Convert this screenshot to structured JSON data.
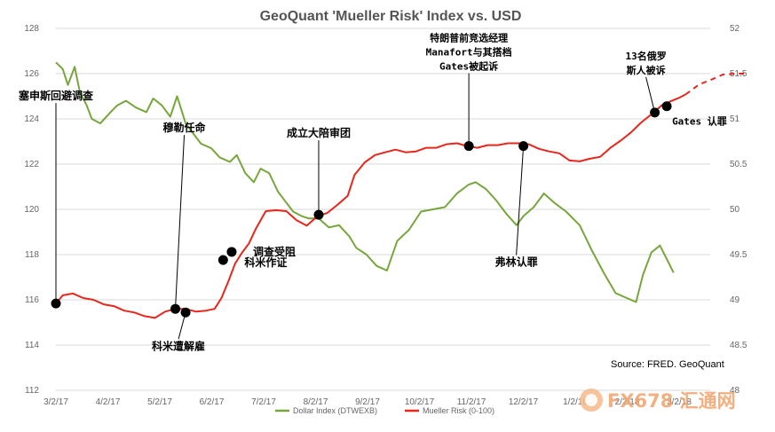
{
  "chart_data": {
    "type": "line",
    "title": "GeoQuant 'Mueller Risk' Index vs. USD",
    "source": "Source: FRED. GeoQuant",
    "x_ticks": [
      "3/2/17",
      "4/2/17",
      "5/2/17",
      "6/2/17",
      "7/2/17",
      "8/2/17",
      "9/2/17",
      "10/2/17",
      "11/2/17",
      "12/2/17",
      "1/2/18",
      "2/2/18",
      "3/2/18"
    ],
    "y_left_ticks": [
      "112",
      "114",
      "116",
      "118",
      "120",
      "122",
      "124",
      "126",
      "128"
    ],
    "y_right_ticks": [
      "48",
      "48.5",
      "49",
      "49.5",
      "50",
      "50.5",
      "51",
      "51.5",
      "52"
    ],
    "ylim_left": [
      112,
      128
    ],
    "ylim_right": [
      48,
      52
    ],
    "grid": true,
    "legend_position": "bottom",
    "series": [
      {
        "name": "Dollar Index (DTWEXB)",
        "axis": "left",
        "color": "#77a63c",
        "x": [
          "2017-03-02",
          "2017-03-06",
          "2017-03-09",
          "2017-03-13",
          "2017-03-16",
          "2017-03-20",
          "2017-03-23",
          "2017-03-28",
          "2017-04-03",
          "2017-04-07",
          "2017-04-12",
          "2017-04-18",
          "2017-04-24",
          "2017-04-28",
          "2017-05-03",
          "2017-05-08",
          "2017-05-12",
          "2017-05-17",
          "2017-05-22",
          "2017-05-26",
          "2017-06-01",
          "2017-06-06",
          "2017-06-12",
          "2017-06-16",
          "2017-06-21",
          "2017-06-26",
          "2017-06-30",
          "2017-07-05",
          "2017-07-10",
          "2017-07-14",
          "2017-07-19",
          "2017-07-24",
          "2017-07-28",
          "2017-08-03",
          "2017-08-09",
          "2017-08-15",
          "2017-08-21",
          "2017-08-25",
          "2017-08-31",
          "2017-09-06",
          "2017-09-12",
          "2017-09-18",
          "2017-09-25",
          "2017-10-02",
          "2017-10-09",
          "2017-10-16",
          "2017-10-23",
          "2017-10-30",
          "2017-11-03",
          "2017-11-09",
          "2017-11-15",
          "2017-11-21",
          "2017-11-27",
          "2017-12-01",
          "2017-12-07",
          "2017-12-13",
          "2017-12-19",
          "2017-12-26",
          "2018-01-03",
          "2018-01-10",
          "2018-01-17",
          "2018-01-24",
          "2018-01-30",
          "2018-02-05",
          "2018-02-09",
          "2018-02-14",
          "2018-02-19",
          "2018-02-23",
          "2018-02-27"
        ],
        "values": [
          126.5,
          126.2,
          125.5,
          126.3,
          125.2,
          124.6,
          124.0,
          123.8,
          124.3,
          124.6,
          124.8,
          124.5,
          124.3,
          124.9,
          124.6,
          124.1,
          125.0,
          123.8,
          123.3,
          122.9,
          122.7,
          122.3,
          122.1,
          122.4,
          121.6,
          121.2,
          121.8,
          121.6,
          120.8,
          120.4,
          119.9,
          119.7,
          119.6,
          119.6,
          119.2,
          119.3,
          118.8,
          118.3,
          118.0,
          117.5,
          117.3,
          118.6,
          119.1,
          119.9,
          120.0,
          120.1,
          120.7,
          121.1,
          121.2,
          120.9,
          120.4,
          119.8,
          119.3,
          119.7,
          120.1,
          120.7,
          120.3,
          119.9,
          119.3,
          118.2,
          117.2,
          116.3,
          116.1,
          115.9,
          117.1,
          118.1,
          118.4,
          117.8,
          117.2
        ]
      },
      {
        "name": "Mueller Risk (0-100)",
        "axis": "right",
        "color": "#e8261c",
        "x": [
          "2017-03-02",
          "2017-03-06",
          "2017-03-12",
          "2017-03-18",
          "2017-03-24",
          "2017-03-30",
          "2017-04-05",
          "2017-04-11",
          "2017-04-17",
          "2017-04-23",
          "2017-04-29",
          "2017-05-05",
          "2017-05-11",
          "2017-05-17",
          "2017-05-23",
          "2017-05-29",
          "2017-06-03",
          "2017-06-07",
          "2017-06-11",
          "2017-06-15",
          "2017-06-19",
          "2017-06-23",
          "2017-06-27",
          "2017-07-03",
          "2017-07-09",
          "2017-07-15",
          "2017-07-21",
          "2017-07-27",
          "2017-08-02",
          "2017-08-08",
          "2017-08-14",
          "2017-08-20",
          "2017-08-24",
          "2017-08-30",
          "2017-09-05",
          "2017-09-11",
          "2017-09-17",
          "2017-09-23",
          "2017-09-29",
          "2017-10-05",
          "2017-10-11",
          "2017-10-17",
          "2017-10-23",
          "2017-10-29",
          "2017-11-04",
          "2017-11-10",
          "2017-11-16",
          "2017-11-22",
          "2017-11-28",
          "2017-12-04",
          "2017-12-10",
          "2017-12-16",
          "2017-12-22",
          "2017-12-28",
          "2018-01-03",
          "2018-01-09",
          "2018-01-15",
          "2018-01-21",
          "2018-01-27",
          "2018-02-02",
          "2018-02-08",
          "2018-02-14",
          "2018-02-20",
          "2018-02-26",
          "2018-03-02",
          "2018-03-06"
        ],
        "values": [
          48.96,
          49.05,
          49.07,
          49.02,
          49.0,
          48.95,
          48.93,
          48.88,
          48.86,
          48.82,
          48.8,
          48.87,
          48.9,
          48.9,
          48.87,
          48.88,
          48.9,
          49.02,
          49.2,
          49.4,
          49.52,
          49.62,
          49.78,
          49.98,
          49.99,
          49.98,
          49.88,
          49.82,
          49.92,
          49.96,
          50.05,
          50.15,
          50.38,
          50.52,
          50.6,
          50.63,
          50.66,
          50.63,
          50.64,
          50.68,
          50.68,
          50.72,
          50.73,
          50.7,
          50.68,
          50.71,
          50.71,
          50.73,
          50.73,
          50.72,
          50.67,
          50.64,
          50.62,
          50.54,
          50.53,
          50.56,
          50.58,
          50.68,
          50.76,
          50.85,
          50.96,
          51.05,
          51.15,
          51.2,
          51.23,
          51.27
        ]
      }
    ],
    "projection": {
      "x": [
        "2018-03-06",
        "2018-03-14",
        "2018-03-22",
        "2018-03-28",
        "2018-04-05",
        "2018-04-11"
      ],
      "values": [
        51.27,
        51.38,
        51.44,
        51.49,
        51.5,
        51.5
      ]
    },
    "annotations": [
      {
        "id": "a1",
        "text": [
          "塞申斯回避调查"
        ],
        "series": 1,
        "date": "2017-03-02",
        "value": 48.96,
        "font": "cjk",
        "mode": "dir",
        "dx": 0,
        "dy": -230
      },
      {
        "id": "a2",
        "text": [
          "穆勒任命"
        ],
        "series": 1,
        "date": "2017-05-11",
        "value": 48.9,
        "font": "cjk",
        "mode": "dir",
        "dx": 10,
        "dy": -200
      },
      {
        "id": "a3",
        "text": [
          "科米遭解雇"
        ],
        "series": 1,
        "date": "2017-05-17",
        "value": 48.86,
        "font": "cjk",
        "mode": "dir",
        "dx": -8,
        "dy": 42
      },
      {
        "id": "a4",
        "text": [
          "科米作证"
        ],
        "series": 1,
        "date": "2017-06-08",
        "value": 49.44,
        "font": "cjk",
        "mode": "label",
        "dx": 24,
        "dy": 3
      },
      {
        "id": "a5",
        "text": [
          "调查受阻"
        ],
        "series": 1,
        "date": "2017-06-13",
        "value": 49.53,
        "font": "cjk",
        "mode": "label",
        "dx": 24,
        "dy": 0
      },
      {
        "id": "a6",
        "text": [
          "成立大陪审团"
        ],
        "series": 1,
        "date": "2017-08-03",
        "value": 49.94,
        "font": "cjk",
        "mode": "dir",
        "dx": 0,
        "dy": -88
      },
      {
        "id": "a7",
        "text": [
          "特朗普前竞选经理",
          "Manafort与其搭档",
          "Gates被起诉"
        ],
        "series": 1,
        "date": "2017-10-30",
        "value": 50.7,
        "font": "mixed",
        "mode": "dir",
        "dx": 0,
        "dy": -86
      },
      {
        "id": "a8",
        "text": [
          "弗林认罪"
        ],
        "series": 1,
        "date": "2017-12-01",
        "value": 50.7,
        "font": "cjk",
        "mode": "dir",
        "dx": -8,
        "dy": 135
      },
      {
        "id": "a9",
        "text": [
          "13名俄罗",
          "斯人被诉"
        ],
        "series": 1,
        "date": "2018-02-16",
        "value": 51.07,
        "font": "mixed",
        "mode": "dir",
        "dx": -10,
        "dy": -44
      },
      {
        "id": "a10",
        "text": [
          "Gates 认罪"
        ],
        "series": 1,
        "date": "2018-02-23",
        "value": 51.14,
        "font": "mixed",
        "mode": "label",
        "dx": 6,
        "dy": 17
      }
    ],
    "watermark": "FX678 汇通网"
  }
}
